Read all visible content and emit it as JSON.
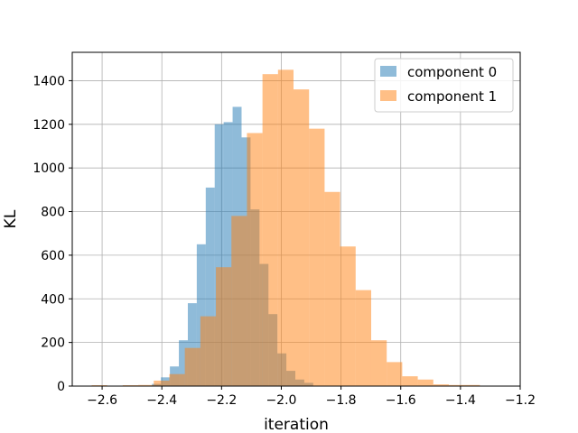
{
  "chart_data": {
    "type": "histogram",
    "xlabel": "iteration",
    "ylabel": "KL",
    "xlim": [
      -2.7,
      -1.2
    ],
    "ylim": [
      0,
      1530
    ],
    "x_ticks": [
      -2.6,
      -2.4,
      -2.2,
      -2.0,
      -1.8,
      -1.6,
      -1.4,
      -1.2
    ],
    "x_tick_labels": [
      "−2.6",
      "−2.4",
      "−2.2",
      "−2.0",
      "−1.8",
      "−1.6",
      "−1.4",
      "−1.2"
    ],
    "y_ticks": [
      0,
      200,
      400,
      600,
      800,
      1000,
      1200,
      1400
    ],
    "y_tick_labels": [
      "0",
      "200",
      "400",
      "600",
      "800",
      "1000",
      "1200",
      "1400"
    ],
    "grid": true,
    "legend_position": "top-right",
    "series": [
      {
        "name": "component 0",
        "color": "#1f77b4",
        "alpha": 0.5,
        "bin_start": -2.433,
        "bin_width": 0.03,
        "values": [
          10,
          40,
          90,
          210,
          380,
          650,
          910,
          1200,
          1210,
          1280,
          1140,
          810,
          560,
          330,
          150,
          70,
          30,
          15
        ]
      },
      {
        "name": "component 1",
        "color": "#ff7f0e",
        "alpha": 0.5,
        "bin_start": -2.635,
        "bin_width": 0.052,
        "values": [
          4,
          2,
          4,
          5,
          25,
          55,
          175,
          320,
          545,
          780,
          1160,
          1430,
          1450,
          1360,
          1180,
          890,
          640,
          440,
          210,
          110,
          45,
          30,
          8,
          5,
          5
        ]
      }
    ]
  }
}
